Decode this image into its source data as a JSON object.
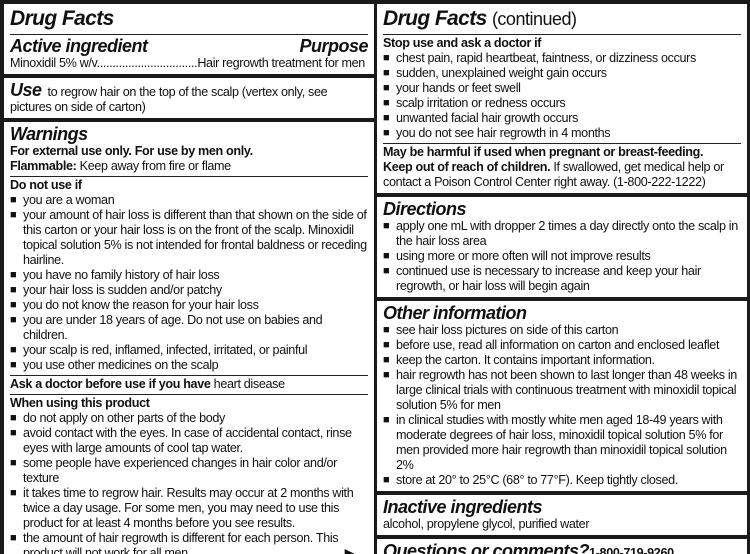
{
  "left": {
    "title": "Drug Facts",
    "active_heading": "Active ingredient",
    "purpose_heading": "Purpose",
    "active_line": "Minoxidil 5% w/v................................Hair regrowth treatment for men",
    "use_heading": "Use",
    "use_text": "to regrow hair on the top of the scalp (vertex only, see pictures on side of carton)",
    "warnings_heading": "Warnings",
    "external": "For external use only. For use by men only.",
    "flammable_label": "Flammable:",
    "flammable_text": "Keep away from fire or flame",
    "donot_heading": "Do not use if",
    "donot_items": [
      "you are a woman",
      "your amount of hair loss is different than that shown on the side of this carton or your hair loss is on the front of the scalp. Minoxidil topical solution 5% is not intended for frontal baldness or receding hairline.",
      "you have no family history of hair loss",
      "your hair loss is sudden and/or patchy",
      "you do not know the reason for your hair loss",
      "you are under 18 years of age. Do not use on babies and children.",
      "your scalp is red, inflamed, infected, irritated, or painful",
      "you use other medicines on the scalp"
    ],
    "ask_label": "Ask a doctor before use if you have",
    "ask_text": "heart disease",
    "when_heading": "When using this product",
    "when_items": [
      "do not apply on other parts of the body",
      "avoid contact with the eyes. In case of accidental contact, rinse eyes with large amounts of cool tap water.",
      "some people have experienced changes in hair color and/or texture",
      "it takes time to regrow hair. Results may occur at 2 months with twice a day usage. For some men, you may need to use this product for at least 4 months before you see results.",
      "the amount of hair regrowth is different for each person. This product will not work for all men."
    ],
    "arrow": "▶"
  },
  "right": {
    "title": "Drug Facts",
    "title_suffix": "(continued)",
    "stop_heading": "Stop use and ask a doctor if",
    "stop_items": [
      "chest pain, rapid heartbeat, faintness, or dizziness occurs",
      "sudden, unexplained weight gain occurs",
      "your hands or feet swell",
      "scalp irritation or redness occurs",
      "unwanted facial hair growth occurs",
      "you do not see hair regrowth in 4 months"
    ],
    "pregnant": "May be harmful if used when pregnant or breast-feeding.",
    "keep_label": "Keep out of reach of children.",
    "keep_text": "If swallowed, get medical help or contact a Poison Control Center right away. (1-800-222-1222)",
    "directions_heading": "Directions",
    "directions_items": [
      "apply one mL with dropper 2 times a day directly onto the scalp in the hair loss area",
      "using more or more often will not improve results",
      "continued use is necessary to increase and keep your hair regrowth, or hair loss will begin again"
    ],
    "other_heading": "Other information",
    "other_items": [
      "see hair loss pictures on side of this carton",
      "before use, read all information on carton and enclosed leaflet",
      "keep the carton. It contains important information.",
      "hair regrowth has not been shown to last longer than 48 weeks in large clinical trials with continuous treatment with minoxidil topical solution 5% for men",
      "in clinical studies with mostly white men aged 18-49 years with moderate degrees of hair loss, minoxidil topical solution 5% for men provided more hair regrowth than minoxidil topical solution 2%",
      "store at 20° to 25°C (68° to 77°F). Keep tightly closed."
    ],
    "inactive_heading": "Inactive ingredients",
    "inactive_text": "alcohol, propylene glycol, purified water",
    "questions_heading": "Questions or comments?",
    "questions_phone": "1-800-719-9260"
  }
}
